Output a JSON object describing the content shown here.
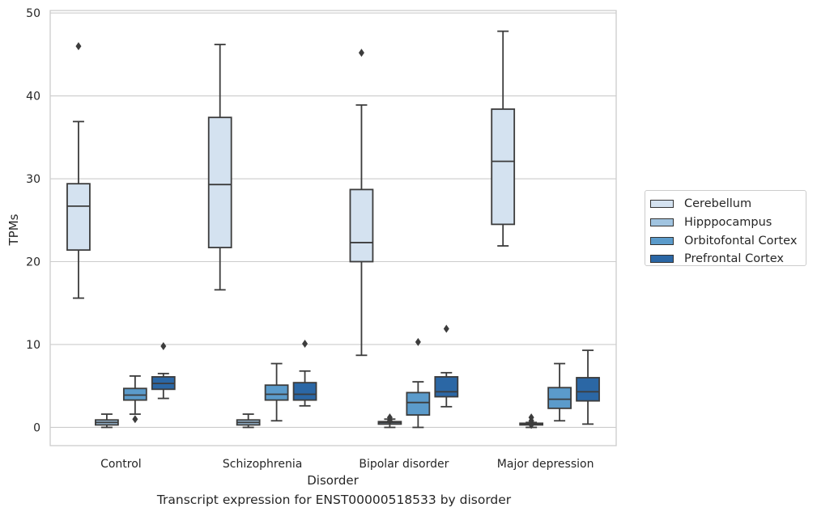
{
  "chart_data": {
    "type": "boxplot",
    "title": "",
    "caption": "Transcript expression for ENST00000518533 by disorder",
    "xlabel": "Disorder",
    "ylabel": "TPMs",
    "ylim": [
      -2.2,
      50.3
    ],
    "yticks": [
      0,
      10,
      20,
      30,
      40,
      50
    ],
    "ytick_labels": [
      "0",
      "10",
      "20",
      "30",
      "40",
      "50"
    ],
    "grid": true,
    "legend_position": "right",
    "categories": [
      "Control",
      "Schizophrenia",
      "Bipolar disorder",
      "Major depression"
    ],
    "series": [
      {
        "name": "Cerebellum",
        "color": "#d4e2f0",
        "boxes": [
          {
            "whislo": 15.6,
            "q1": 21.4,
            "med": 26.7,
            "q3": 29.4,
            "whishi": 36.9,
            "fliers": [
              46.0
            ]
          },
          {
            "whislo": 16.6,
            "q1": 21.7,
            "med": 29.3,
            "q3": 37.4,
            "whishi": 46.2,
            "fliers": []
          },
          {
            "whislo": 8.7,
            "q1": 20.0,
            "med": 22.3,
            "q3": 28.7,
            "whishi": 38.9,
            "fliers": [
              45.2
            ]
          },
          {
            "whislo": 21.9,
            "q1": 24.5,
            "med": 32.1,
            "q3": 38.4,
            "whishi": 47.8,
            "fliers": []
          }
        ]
      },
      {
        "name": "Hipppocampus",
        "color": "#a1c4e0",
        "boxes": [
          {
            "whislo": 0.0,
            "q1": 0.3,
            "med": 0.6,
            "q3": 0.9,
            "whishi": 1.6,
            "fliers": []
          },
          {
            "whislo": 0.0,
            "q1": 0.3,
            "med": 0.6,
            "q3": 0.9,
            "whishi": 1.6,
            "fliers": []
          },
          {
            "whislo": 0.0,
            "q1": 0.4,
            "med": 0.6,
            "q3": 0.7,
            "whishi": 1.0,
            "fliers": [
              0.8,
              1.2
            ]
          },
          {
            "whislo": 0.0,
            "q1": 0.3,
            "med": 0.4,
            "q3": 0.5,
            "whishi": 0.6,
            "fliers": [
              0.3,
              0.8,
              1.2
            ]
          }
        ]
      },
      {
        "name": "Orbitofontal Cortex",
        "color": "#5b9bcb",
        "boxes": [
          {
            "whislo": 1.6,
            "q1": 3.3,
            "med": 3.9,
            "q3": 4.7,
            "whishi": 6.2,
            "fliers": [
              1.0
            ]
          },
          {
            "whislo": 0.8,
            "q1": 3.3,
            "med": 4.0,
            "q3": 5.1,
            "whishi": 7.7,
            "fliers": []
          },
          {
            "whislo": 0.0,
            "q1": 1.5,
            "med": 3.0,
            "q3": 4.2,
            "whishi": 5.5,
            "fliers": [
              10.3
            ]
          },
          {
            "whislo": 0.8,
            "q1": 2.3,
            "med": 3.4,
            "q3": 4.8,
            "whishi": 7.7,
            "fliers": []
          }
        ]
      },
      {
        "name": "Prefrontal Cortex",
        "color": "#2b67a5",
        "boxes": [
          {
            "whislo": 3.5,
            "q1": 4.6,
            "med": 5.3,
            "q3": 6.1,
            "whishi": 6.5,
            "fliers": [
              9.8
            ]
          },
          {
            "whislo": 2.6,
            "q1": 3.3,
            "med": 4.0,
            "q3": 5.4,
            "whishi": 6.8,
            "fliers": [
              10.1
            ]
          },
          {
            "whislo": 2.5,
            "q1": 3.7,
            "med": 4.3,
            "q3": 6.1,
            "whishi": 6.6,
            "fliers": [
              11.9
            ]
          },
          {
            "whislo": 0.4,
            "q1": 3.2,
            "med": 4.3,
            "q3": 6.0,
            "whishi": 9.3,
            "fliers": []
          }
        ]
      }
    ]
  }
}
